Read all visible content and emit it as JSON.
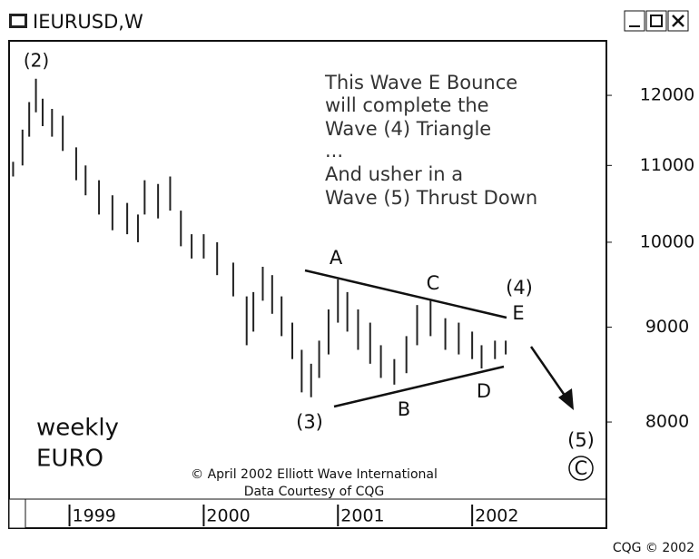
{
  "window": {
    "title": "IEURUSD,W"
  },
  "footer": "CQG © 2002",
  "chart_data": {
    "type": "range_bar",
    "color": "#222222",
    "log_scale": true,
    "x": [
      1998.58,
      1998.65,
      1998.7,
      1998.75,
      1998.8,
      1998.87,
      1998.95,
      1999.05,
      1999.12,
      1999.22,
      1999.32,
      1999.43,
      1999.51,
      1999.56,
      1999.66,
      1999.75,
      1999.83,
      1999.91,
      2000.0,
      2000.1,
      2000.22,
      2000.32,
      2000.37,
      2000.44,
      2000.51,
      2000.58,
      2000.66,
      2000.73,
      2000.8,
      2000.86,
      2000.93,
      2001.0,
      2001.07,
      2001.15,
      2001.24,
      2001.32,
      2001.42,
      2001.51,
      2001.59,
      2001.69,
      2001.8,
      2001.9,
      2002.0,
      2002.07,
      2002.17,
      2002.25
    ],
    "high": [
      11050,
      11500,
      11900,
      12250,
      11950,
      11800,
      11700,
      11250,
      11000,
      10800,
      10600,
      10500,
      10350,
      10800,
      10750,
      10850,
      10400,
      10100,
      10100,
      10000,
      9750,
      9350,
      9400,
      9700,
      9600,
      9350,
      9050,
      8750,
      8600,
      8850,
      9200,
      9550,
      9400,
      9200,
      9050,
      8800,
      8650,
      8900,
      9250,
      9300,
      9100,
      9050,
      8950,
      8800,
      8850,
      8850
    ],
    "low": [
      10850,
      11000,
      11400,
      11750,
      11550,
      11400,
      11200,
      10800,
      10600,
      10350,
      10150,
      10100,
      10000,
      10350,
      10300,
      10400,
      9950,
      9800,
      9800,
      9600,
      9350,
      8800,
      8950,
      9300,
      9150,
      8900,
      8650,
      8300,
      8250,
      8450,
      8700,
      9050,
      8950,
      8750,
      8600,
      8450,
      8380,
      8500,
      8800,
      8900,
      8750,
      8700,
      8650,
      8550,
      8650,
      8700
    ],
    "xlim": [
      1998.55,
      2003.0
    ],
    "xticks": [
      1999,
      2000,
      2001,
      2002
    ],
    "ylim": [
      7270,
      12840
    ],
    "yticks": [
      8000,
      9000,
      10000,
      11000,
      12000
    ],
    "annotations": [
      "(2)",
      "This Wave E Bounce",
      "will complete the",
      "Wave (4) Triangle",
      "...",
      "And usher in a",
      "Wave (5) Thrust Down",
      "A",
      "B",
      "C",
      "D",
      "E",
      "(4)",
      "(3)",
      "(5)",
      "C",
      "weekly",
      "EURO",
      "© April 2002 Elliott Wave International",
      "Data Courtesy of CQG"
    ]
  }
}
